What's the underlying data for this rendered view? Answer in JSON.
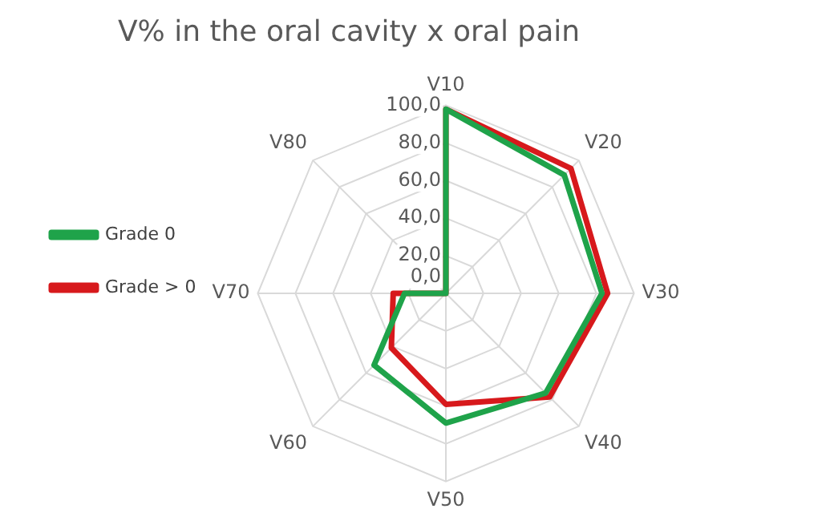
{
  "chart_data": {
    "type": "radar",
    "title": "V% in the oral cavity x oral pain",
    "categories": [
      "V10",
      "V20",
      "V30",
      "V40",
      "V50",
      "V60",
      "V70",
      "V80"
    ],
    "series": [
      {
        "name": "Grade 0",
        "color": "#1fa34a",
        "values": [
          98,
          89,
          83,
          75,
          69,
          54,
          22,
          0
        ]
      },
      {
        "name": "Grade > 0",
        "color": "#d7191c",
        "values": [
          98,
          94,
          86,
          78,
          59,
          41,
          28,
          0
        ]
      }
    ],
    "ylim": [
      0,
      100
    ],
    "yticks": [
      {
        "value": 0,
        "label": "0,0"
      },
      {
        "value": 20,
        "label": "20,0"
      },
      {
        "value": 40,
        "label": "40,0"
      },
      {
        "value": 60,
        "label": "60,0"
      },
      {
        "value": 80,
        "label": "80,0"
      },
      {
        "value": 100,
        "label": "100,0"
      }
    ],
    "grid": true,
    "legend": "left",
    "marker": "none",
    "line_style": "solid"
  }
}
